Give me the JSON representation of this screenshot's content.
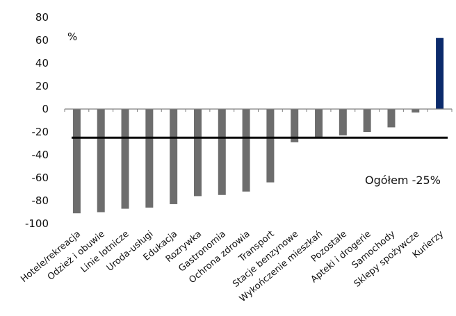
{
  "title_fragment": {
    "dark": "...",
    "blue": "..."
  },
  "chart_data": {
    "type": "bar",
    "unit": "%",
    "categories": [
      "Hotele/rekreacja",
      "Odzież i obuwie",
      "Linie lotnicze",
      "Uroda-usługi",
      "Edukacja",
      "Rozrywka",
      "Gastronomia",
      "Ochrona zdrowia",
      "Transport",
      "Stacje benzynowe",
      "Wykończenie mieszkań",
      "Pozostałe",
      "Apteki i drogerie",
      "Samochody",
      "Sklepy spożywcze",
      "Kurierzy"
    ],
    "values": [
      -91,
      -90,
      -87,
      -86,
      -83,
      -76,
      -75,
      -72,
      -64,
      -29,
      -25,
      -23,
      -20,
      -16,
      -3,
      62
    ],
    "ylim": [
      -100,
      80
    ],
    "yticks": [
      -100,
      -80,
      -60,
      -40,
      -20,
      0,
      20,
      40,
      60,
      80
    ],
    "reference_line": {
      "value": -25,
      "label": "Ogółem -25%"
    },
    "colors": {
      "negative": "#6d6d6d",
      "positive": "#0b2a6b",
      "reference": "#000000"
    }
  }
}
